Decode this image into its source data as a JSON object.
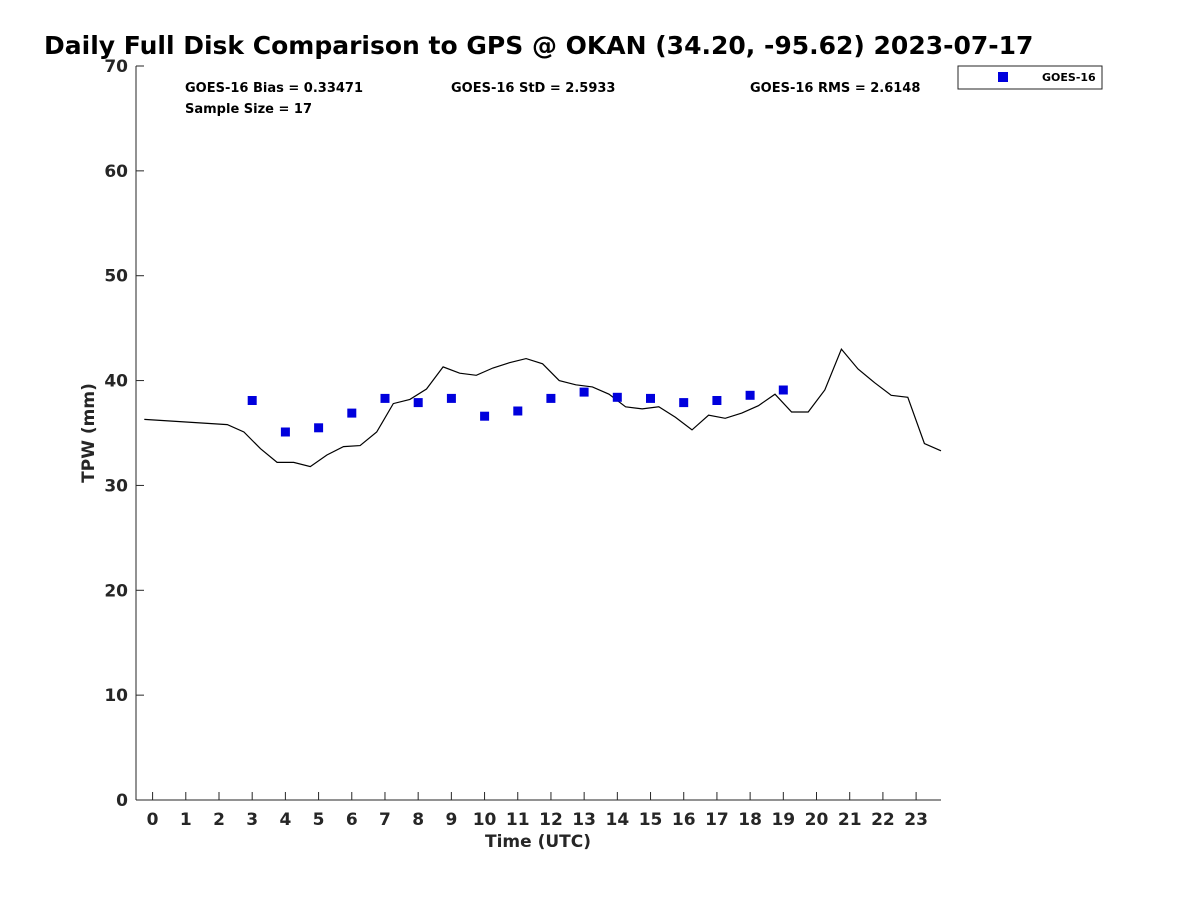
{
  "chart_data": {
    "type": "scatter",
    "title": "Daily Full Disk Comparison to GPS @ OKAN (34.20, -95.62) 2023-07-17",
    "xlabel": "Time (UTC)",
    "ylabel": "TPW (mm)",
    "xlim": [
      -0.5,
      23.75
    ],
    "ylim": [
      0,
      70
    ],
    "x_ticks": [
      0,
      1,
      2,
      3,
      4,
      5,
      6,
      7,
      8,
      9,
      10,
      11,
      12,
      13,
      14,
      15,
      16,
      17,
      18,
      19,
      20,
      21,
      22,
      23
    ],
    "x_tick_labels": [
      "0",
      "1",
      "2",
      "3",
      "4",
      "5",
      "6",
      "7",
      "8",
      "9",
      "10",
      "11",
      "12",
      "13",
      "14",
      "15",
      "16",
      "17",
      "18",
      "19",
      "20",
      "21",
      "22",
      "23"
    ],
    "y_ticks": [
      0,
      10,
      20,
      30,
      40,
      50,
      60,
      70
    ],
    "y_tick_labels": [
      "0",
      "10",
      "20",
      "30",
      "40",
      "50",
      "60",
      "70"
    ],
    "grid": false,
    "legend_position": "top-right, outside plot",
    "stats": {
      "bias": "GOES-16 Bias = 0.33471",
      "std": "GOES-16 StD = 2.5933",
      "rms": "GOES-16 RMS = 2.6148",
      "sample_size": "Sample Size = 17"
    },
    "series": [
      {
        "name": "",
        "kind": "line",
        "color": "#000000",
        "x": [
          -0.25,
          2.25,
          2.75,
          3.25,
          3.75,
          4.25,
          4.75,
          5.25,
          5.75,
          6.25,
          6.75,
          7.25,
          7.75,
          8.25,
          8.75,
          9.25,
          9.75,
          10.25,
          10.75,
          11.25,
          11.75,
          12.25,
          12.75,
          13.25,
          13.75,
          14.25,
          14.75,
          15.25,
          15.75,
          16.25,
          16.75,
          17.25,
          17.75,
          18.25,
          18.75,
          19.25,
          19.75,
          20.25,
          20.75,
          21.25,
          21.75,
          22.25,
          22.75,
          23.25,
          23.75
        ],
        "y": [
          36.3,
          35.8,
          35.1,
          33.5,
          32.2,
          32.2,
          31.8,
          32.9,
          33.7,
          33.8,
          35.1,
          37.8,
          38.2,
          39.2,
          41.3,
          40.7,
          40.5,
          41.2,
          41.7,
          42.1,
          41.6,
          40.0,
          39.6,
          39.4,
          38.7,
          37.5,
          37.3,
          37.5,
          36.5,
          35.3,
          36.7,
          36.4,
          36.9,
          37.6,
          38.7,
          37.0,
          37.0,
          39.1,
          43.0,
          41.1,
          39.8,
          38.6,
          38.4,
          34.0,
          33.3
        ]
      },
      {
        "name": "GOES-16",
        "kind": "scatter",
        "marker": "square",
        "color": "#0000dd",
        "x": [
          3,
          4,
          5,
          6,
          7,
          8,
          9,
          10,
          11,
          12,
          13,
          14,
          15,
          16,
          17,
          18,
          19
        ],
        "y": [
          38.1,
          35.1,
          35.5,
          36.9,
          38.3,
          37.9,
          38.3,
          36.6,
          37.1,
          38.3,
          38.9,
          38.4,
          38.3,
          37.9,
          38.1,
          38.6,
          39.1
        ]
      }
    ]
  }
}
